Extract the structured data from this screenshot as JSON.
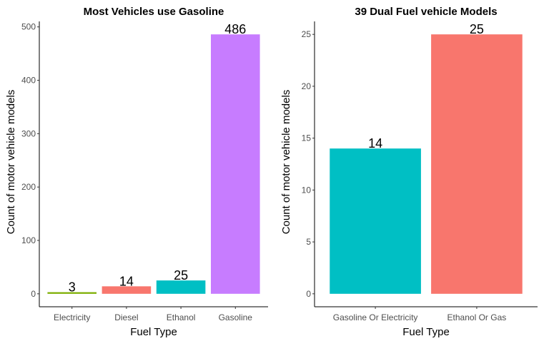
{
  "chart_data": [
    {
      "type": "bar",
      "title": "Most Vehicles use Gasoline",
      "xlabel": "Fuel Type",
      "ylabel": "Count of motor vehicle models",
      "categories": [
        "Electricity",
        "Diesel",
        "Ethanol",
        "Gasoline"
      ],
      "values": [
        3,
        14,
        25,
        486
      ],
      "value_labels": [
        "3",
        "14",
        "25",
        "486"
      ],
      "colors": [
        "#7CAE00",
        "#F8766D",
        "#00BFC4",
        "#C77CFF"
      ],
      "yticks": [
        0,
        100,
        200,
        300,
        400,
        500
      ],
      "ytick_labels": [
        "0",
        "100",
        "200",
        "300",
        "400",
        "500"
      ],
      "ylim": [
        -24.3,
        510.3
      ],
      "grid": false,
      "legend": "none"
    },
    {
      "type": "bar",
      "title": "39 Dual Fuel vehicle Models",
      "xlabel": "Fuel Type",
      "ylabel": "Count of motor vehicle models",
      "categories": [
        "Gasoline Or Electricity",
        "Ethanol Or Gas"
      ],
      "values": [
        14,
        25
      ],
      "value_labels": [
        "14",
        "25"
      ],
      "colors": [
        "#00BFC4",
        "#F8766D"
      ],
      "yticks": [
        0,
        5,
        10,
        15,
        20,
        25
      ],
      "ytick_labels": [
        "0",
        "5",
        "10",
        "15",
        "20",
        "25"
      ],
      "ylim": [
        -1.25,
        26.25
      ],
      "grid": false,
      "legend": "none"
    }
  ]
}
